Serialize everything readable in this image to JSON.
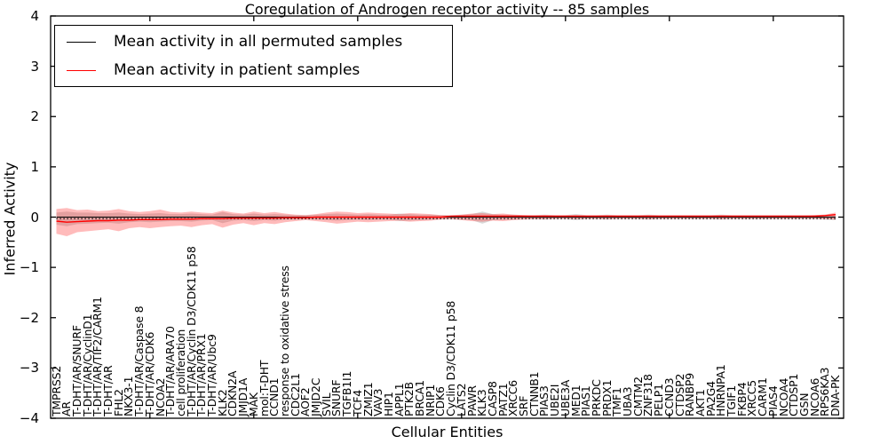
{
  "chart_data": {
    "type": "line",
    "title": "Coregulation of Androgen receptor activity -- 85 samples",
    "xlabel": "Cellular Entities",
    "ylabel": "Inferred Activity",
    "ylim": [
      -4,
      4
    ],
    "ytick_labels": [
      "4",
      "3",
      "2",
      "1",
      "0",
      "−1",
      "−2",
      "−3",
      "−4"
    ],
    "xtick_positions": [
      10,
      20,
      30,
      40,
      50,
      60,
      70
    ],
    "grid": false,
    "legend_position": "upper left",
    "categories": [
      "TMPRSS2",
      "AR",
      "T-DHT/AR/SNURF",
      "T-DHT/AR/CyclinD1",
      "T-DHT/AR/TIF2/CARM1",
      "T-DHT/AR",
      "FHL2",
      "NKX3-1",
      "T-DHT/AR/Caspase 8",
      "T-DHT/AR/CDK6",
      "NCOA2",
      "T-DHT/AR/ARA70",
      "cell proliferation",
      "T-DHT/AR/Cyclin D3/CDK11 p58",
      "T-DHT/AR/PRX1",
      "T-DHT/AR/Ubc9",
      "KLK2",
      "CDKN2A",
      "JMJD1A",
      "MAK",
      "mol:T-DHT",
      "CCND1",
      "response to oxidative stress",
      "CDC2L1",
      "AOF2",
      "JMJD2C",
      "SVIL",
      "SNURF",
      "TGFB1I1",
      "TCF4",
      "ZMIZ1",
      "VAV3",
      "HIP1",
      "APPL1",
      "PTK2B",
      "BRCA1",
      "NRIP1",
      "CDK6",
      "Cyclin D3/CDK11 p58",
      "LATS2",
      "PAWR",
      "KLK3",
      "CASP8",
      "PATZ1",
      "XRCC6",
      "SRF",
      "CTNNB1",
      "PIAS3",
      "UBE2I",
      "UBE3A",
      "MED1",
      "PIAS1",
      "PRKDC",
      "PRDX1",
      "TMF1",
      "UBA3",
      "CMTM2",
      "ZNF318",
      "PELP1",
      "CCND3",
      "CTDSP2",
      "RANBP9",
      "AKT1",
      "PA2G4",
      "HNRNPA1",
      "TGIF1",
      "FKBP4",
      "XRCC5",
      "CARM1",
      "PIAS4",
      "NCOA4",
      "CTDSP1",
      "GSN",
      "NCOA6",
      "RPS6KA3",
      "DNA-PK"
    ],
    "series": [
      {
        "name": "Mean activity in all permuted samples",
        "color": "#000000",
        "style": "solid-with-dotted-overlay",
        "values": [
          0,
          0,
          0,
          0,
          0,
          0,
          0,
          0,
          0,
          0,
          0,
          0,
          0,
          0,
          0,
          0,
          0,
          0,
          0,
          0,
          0,
          0,
          0,
          0,
          0,
          0,
          0,
          0,
          0,
          0,
          0,
          0,
          0,
          0,
          0,
          0,
          0,
          0,
          0,
          0,
          0,
          0,
          0,
          0,
          0,
          0,
          0,
          0,
          0,
          0,
          0,
          0,
          0,
          0,
          0,
          0,
          0,
          0,
          0,
          0,
          0,
          0,
          0,
          0,
          0,
          0,
          0,
          0,
          0,
          0,
          0,
          0,
          0,
          0,
          0,
          0
        ]
      },
      {
        "name": "Mean activity in patient samples",
        "color": "#ff0000",
        "style": "solid",
        "values": [
          -0.08,
          -0.1,
          -0.09,
          -0.08,
          -0.07,
          -0.07,
          -0.06,
          -0.06,
          -0.05,
          -0.05,
          -0.05,
          -0.04,
          -0.04,
          -0.04,
          -0.03,
          -0.03,
          -0.03,
          -0.02,
          -0.02,
          -0.02,
          -0.02,
          -0.02,
          -0.01,
          -0.01,
          -0.01,
          0,
          0,
          0,
          0,
          0,
          0,
          0,
          0,
          0,
          0,
          0,
          0,
          0,
          0.02,
          0.02,
          0.02,
          0.02,
          0.02,
          0.02,
          0.02,
          0.02,
          0.02,
          0.02,
          0.02,
          0.02,
          0.02,
          0.02,
          0.02,
          0.02,
          0.02,
          0.02,
          0.02,
          0.02,
          0.02,
          0.02,
          0.02,
          0.02,
          0.02,
          0.02,
          0.02,
          0.02,
          0.02,
          0.02,
          0.02,
          0.02,
          0.02,
          0.02,
          0.02,
          0.02,
          0.03,
          0.05
        ]
      }
    ],
    "bands": [
      {
        "name": "permuted-samples-range",
        "color": "#999999",
        "opacity": 0.38,
        "upper": [
          0.09,
          0.11,
          0.09,
          0.09,
          0.08,
          0.08,
          0.09,
          0.07,
          0.06,
          0.07,
          0.08,
          0.06,
          0.06,
          0.07,
          0.06,
          0.05,
          0.1,
          0.06,
          0.05,
          0.07,
          0.05,
          0.06,
          0.05,
          0.04,
          0.04,
          0.05,
          0.06,
          0.07,
          0.06,
          0.05,
          0.06,
          0.05,
          0.05,
          0.07,
          0.06,
          0.05,
          0.05,
          0.04,
          0.04,
          0.05,
          0.06,
          0.11,
          0.06,
          0.05,
          0.05,
          0.04,
          0.04,
          0.05,
          0.04,
          0.04,
          0.06,
          0.04,
          0.04,
          0.05,
          0.04,
          0.04,
          0.04,
          0.05,
          0.04,
          0.04,
          0.04,
          0.04,
          0.04,
          0.04,
          0.05,
          0.04,
          0.04,
          0.04,
          0.04,
          0.04,
          0.04,
          0.04,
          0.04,
          0.04,
          0.05,
          0.06
        ],
        "lower": [
          -0.15,
          -0.18,
          -0.14,
          -0.13,
          -0.12,
          -0.11,
          -0.13,
          -0.1,
          -0.09,
          -0.1,
          -0.09,
          -0.08,
          -0.08,
          -0.09,
          -0.07,
          -0.06,
          -0.12,
          -0.07,
          -0.06,
          -0.08,
          -0.06,
          -0.07,
          -0.05,
          -0.05,
          -0.04,
          -0.05,
          -0.06,
          -0.07,
          -0.06,
          -0.05,
          -0.06,
          -0.05,
          -0.05,
          -0.08,
          -0.07,
          -0.06,
          -0.05,
          -0.04,
          -0.04,
          -0.05,
          -0.06,
          -0.13,
          -0.06,
          -0.05,
          -0.05,
          -0.04,
          -0.04,
          -0.05,
          -0.04,
          -0.04,
          -0.06,
          -0.04,
          -0.04,
          -0.05,
          -0.04,
          -0.04,
          -0.04,
          -0.05,
          -0.04,
          -0.04,
          -0.04,
          -0.04,
          -0.04,
          -0.04,
          -0.05,
          -0.04,
          -0.04,
          -0.04,
          -0.04,
          -0.04,
          -0.04,
          -0.04,
          -0.04,
          -0.04,
          -0.05,
          -0.06
        ]
      },
      {
        "name": "patient-samples-range",
        "color": "#ff2b2b",
        "opacity": 0.32,
        "upper": [
          0.16,
          0.18,
          0.14,
          0.15,
          0.12,
          0.13,
          0.16,
          0.12,
          0.1,
          0.12,
          0.15,
          0.1,
          0.09,
          0.11,
          0.09,
          0.08,
          0.13,
          0.09,
          0.07,
          0.11,
          0.08,
          0.1,
          0.07,
          0.05,
          0.04,
          0.06,
          0.09,
          0.11,
          0.1,
          0.08,
          0.09,
          0.08,
          0.07,
          0.06,
          0.08,
          0.07,
          0.06,
          0.04,
          0.03,
          0.05,
          0.07,
          0.08,
          0.06,
          0.07,
          0.05,
          0.04,
          0.03,
          0.04,
          0.03,
          0.03,
          0.04,
          0.03,
          0.03,
          0.04,
          0.03,
          0.03,
          0.03,
          0.04,
          0.03,
          0.03,
          0.03,
          0.03,
          0.03,
          0.03,
          0.04,
          0.03,
          0.03,
          0.03,
          0.03,
          0.03,
          0.03,
          0.03,
          0.03,
          0.04,
          0.05,
          0.09
        ],
        "lower": [
          -0.33,
          -0.38,
          -0.3,
          -0.28,
          -0.26,
          -0.24,
          -0.28,
          -0.22,
          -0.2,
          -0.22,
          -0.2,
          -0.18,
          -0.17,
          -0.2,
          -0.16,
          -0.14,
          -0.21,
          -0.15,
          -0.12,
          -0.16,
          -0.12,
          -0.14,
          -0.1,
          -0.08,
          -0.06,
          -0.08,
          -0.1,
          -0.13,
          -0.11,
          -0.09,
          -0.1,
          -0.09,
          -0.08,
          -0.07,
          -0.09,
          -0.08,
          -0.07,
          -0.05,
          -0.04,
          -0.06,
          -0.08,
          -0.09,
          -0.07,
          -0.08,
          -0.06,
          -0.05,
          -0.04,
          -0.04,
          -0.03,
          -0.03,
          -0.04,
          -0.03,
          -0.03,
          -0.04,
          -0.03,
          -0.03,
          -0.03,
          -0.04,
          -0.03,
          -0.03,
          -0.03,
          -0.03,
          -0.03,
          -0.03,
          -0.04,
          -0.03,
          -0.03,
          -0.03,
          -0.03,
          -0.03,
          -0.03,
          -0.03,
          -0.03,
          -0.03,
          -0.04,
          -0.05
        ]
      }
    ]
  }
}
